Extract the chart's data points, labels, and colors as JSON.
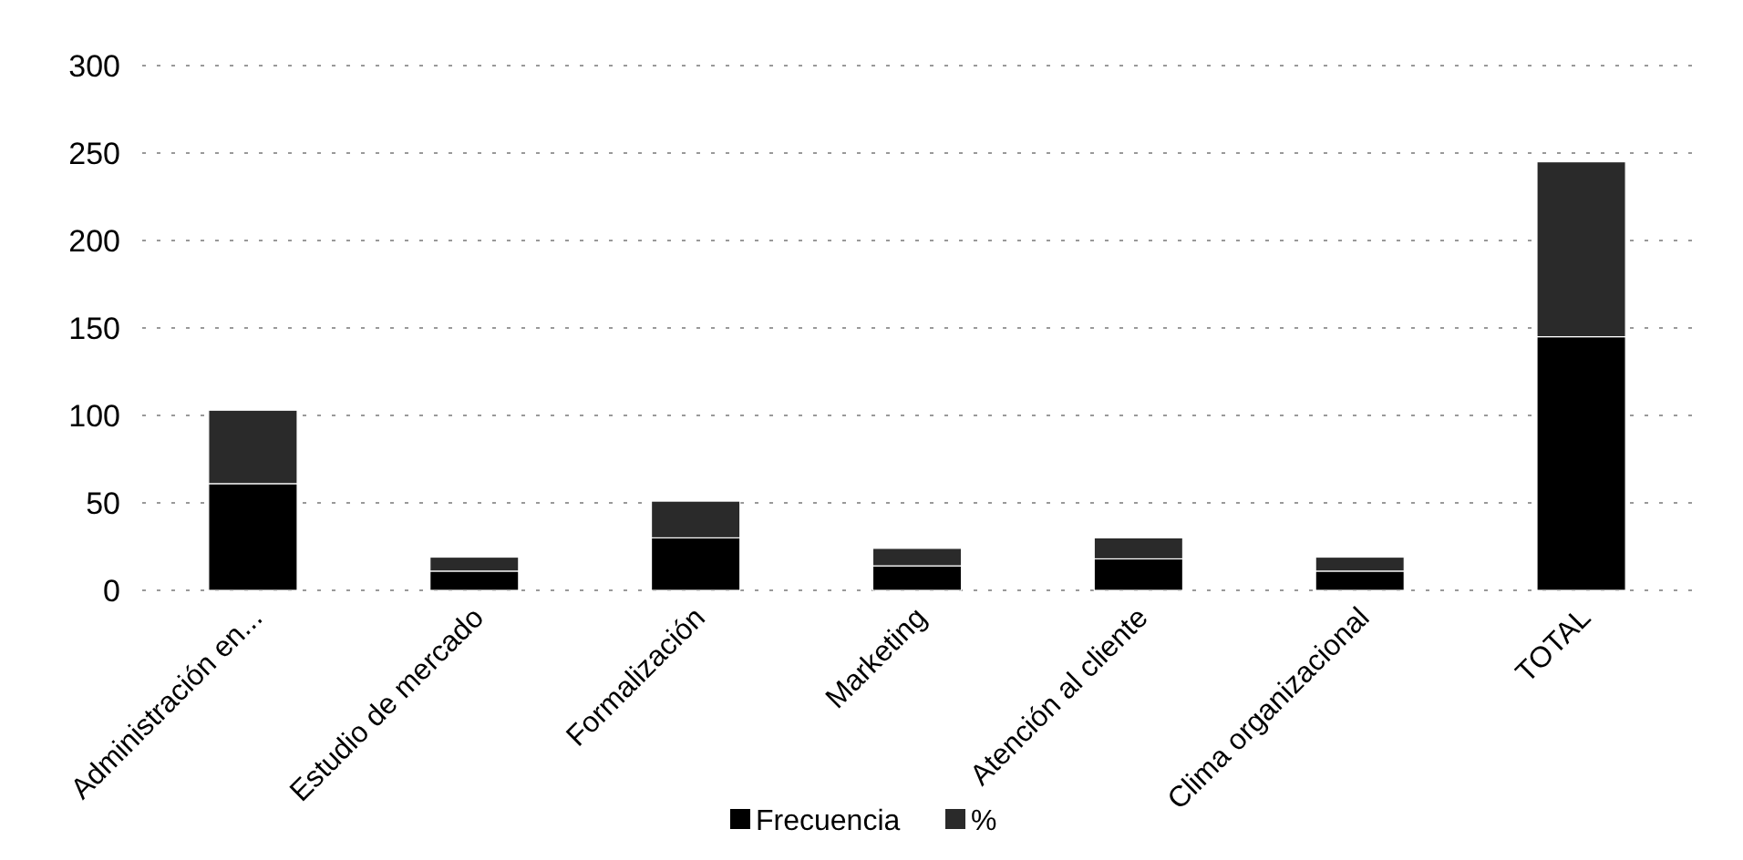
{
  "chart_data": {
    "type": "bar",
    "stacked": true,
    "categories": [
      "Administración en...",
      "Estudio de mercado",
      "Formalización",
      "Marketing",
      "Atención al cliente",
      "Clima organizacional",
      "TOTAL"
    ],
    "series": [
      {
        "name": "Frecuencia",
        "color": "#000000",
        "values": [
          61,
          11,
          30,
          14,
          18,
          11,
          145
        ]
      },
      {
        "name": "%",
        "color": "#2a2a2a",
        "values": [
          42,
          8,
          21,
          10,
          12,
          8,
          100
        ]
      }
    ],
    "ylim": [
      0,
      300
    ],
    "yticks": [
      0,
      50,
      100,
      150,
      200,
      250,
      300
    ],
    "grid": "y",
    "legend": "bottom"
  }
}
